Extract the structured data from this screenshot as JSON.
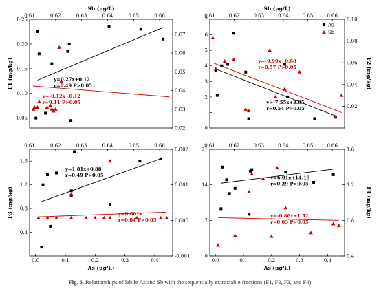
{
  "caption": {
    "label": "Fig. 6.",
    "text": "Relationships of labile As and Sb with the sequentially extractable fractions (F1, F2, F3, and F4)."
  },
  "colors": {
    "as_series": "#000000",
    "sb_series": "#cc0000",
    "as_text": "#000000",
    "sb_text": "#cc0000"
  },
  "chart_data": [
    {
      "id": "F1",
      "type": "scatter",
      "top_axis_label": "Sb (μg/L)",
      "xlim_as": [
        0,
        0.45
      ],
      "xlim_sb": [
        0.61,
        0.665
      ],
      "x_ticks_as": [],
      "x_ticks_sb": [
        "0.61",
        "0.62",
        "0.63",
        "0.64",
        "0.65",
        "0.66"
      ],
      "ylabel_left": "F1 (mg/kg)",
      "ylim_left": [
        0.03,
        0.25
      ],
      "y_ticks_left": [
        "0.05",
        "0.10",
        "0.15",
        "0.20",
        "0.25"
      ],
      "ylabel_right": "",
      "ylim_right": [
        0.02,
        0.078
      ],
      "y_ticks_right": [
        "0.02",
        "0.03",
        "0.04",
        "0.05",
        "0.06",
        "0.07"
      ],
      "legend": null,
      "as_points": [
        [
          0.02,
          0.05
        ],
        [
          0.025,
          0.225
        ],
        [
          0.03,
          0.18
        ],
        [
          0.05,
          0.06
        ],
        [
          0.07,
          0.16
        ],
        [
          0.12,
          0.185
        ],
        [
          0.125,
          0.2
        ],
        [
          0.13,
          0.045
        ],
        [
          0.25,
          0.235
        ],
        [
          0.35,
          0.23
        ],
        [
          0.42,
          0.21
        ]
      ],
      "sb_points": [
        [
          0.012,
          0.03
        ],
        [
          0.016,
          0.031
        ],
        [
          0.025,
          0.031
        ],
        [
          0.03,
          0.034
        ],
        [
          0.055,
          0.031
        ],
        [
          0.065,
          0.032
        ],
        [
          0.07,
          0.03
        ],
        [
          0.075,
          0.029
        ],
        [
          0.082,
          0.03
        ],
        [
          0.093,
          0.063
        ],
        [
          0.1,
          0.045
        ]
      ],
      "sb_points_note": "",
      "as_fit": {
        "slope": 0.27,
        "intercept": 0.12,
        "x0": 0.025,
        "x1": 0.42
      },
      "sb_fit": {
        "slope": -0.12,
        "intercept": 0.12,
        "x0": 0.01,
        "x1": 0.44
      },
      "as_annotation": [
        "y=0.27x+0.12",
        "r=0.49  P>0.05"
      ],
      "sb_annotation": [
        "y=-0.12x+0.12",
        "r=0.11  P>0.05"
      ]
    },
    {
      "id": "F2",
      "type": "scatter",
      "top_axis_label": "Sb (μg/L)",
      "xlim_as": [
        0,
        0.45
      ],
      "xlim_sb": [
        0.61,
        0.665
      ],
      "x_ticks_as": [],
      "x_ticks_sb": [
        "0.61",
        "0.62",
        "0.63",
        "0.64",
        "0.65",
        "0.66"
      ],
      "ylabel_left": "",
      "ylim_left": [
        0,
        7
      ],
      "y_ticks_left": [
        "0",
        "1",
        "2",
        "3",
        "4",
        "5",
        "6",
        "7"
      ],
      "ylabel_right": "F2 (mg/kg)",
      "ylim_right": [
        0,
        0.1
      ],
      "y_ticks_right": [
        "0.02",
        "0.04",
        "0.06",
        "0.08",
        "0.10"
      ],
      "legend": {
        "as": "As",
        "sb": "Sb"
      },
      "as_points": [
        [
          0.02,
          3.7
        ],
        [
          0.025,
          2.1
        ],
        [
          0.04,
          4.0
        ],
        [
          0.06,
          4.1
        ],
        [
          0.08,
          6.1
        ],
        [
          0.12,
          3.6
        ],
        [
          0.13,
          0.6
        ],
        [
          0.25,
          4.1
        ],
        [
          0.26,
          2.0
        ],
        [
          0.35,
          0.6
        ],
        [
          0.42,
          0.7
        ]
      ],
      "sb_points": [
        [
          0.01,
          5.8
        ],
        [
          0.02,
          3.8
        ],
        [
          0.05,
          4.3
        ],
        [
          0.08,
          4.4
        ],
        [
          0.12,
          1.2
        ],
        [
          0.13,
          1.1
        ],
        [
          0.2,
          5.0
        ],
        [
          0.22,
          2.0
        ],
        [
          0.25,
          2.5
        ],
        [
          0.3,
          3.6
        ],
        [
          0.42,
          0.7
        ],
        [
          0.44,
          2.1
        ]
      ],
      "as_fit": {
        "slope": -7.55,
        "intercept": 3.95,
        "x0": 0.02,
        "x1": 0.42
      },
      "sb_fit": {
        "slope": -9.99,
        "intercept": 0.68,
        "x0": 0.01,
        "x1": 0.44
      },
      "as_annotation": [
        "y=-7.55x+3.95",
        "r=0.54  P>0.05"
      ],
      "sb_annotation": [
        "y=-9.99x+0.68",
        "r=0.57  P>0.05"
      ]
    },
    {
      "id": "F3",
      "type": "scatter",
      "top_axis_label": "",
      "xlim_as": [
        -0.02,
        0.46
      ],
      "xlim_sb": [
        0.61,
        0.665
      ],
      "x_ticks_as": [
        "0.0",
        "0.1",
        "0.2",
        "0.3",
        "0.4"
      ],
      "x_ticks_sb": [
        "0.61",
        "0.62",
        "0.63",
        "0.64",
        "0.65",
        "0.66"
      ],
      "xlabel": "As (μg/L)",
      "ylabel_left": "F3 (mg/kg)",
      "ylim_left": [
        0,
        1.8
      ],
      "y_ticks_left": [
        "0.4",
        "0.8",
        "1.2",
        "1.6"
      ],
      "ylabel_right": "",
      "ylim_right": [
        -0.001,
        0.002
      ],
      "y_ticks_right": [
        "-0.001",
        "0.000",
        "0.001",
        "0.002"
      ],
      "legend": null,
      "as_points": [
        [
          0.02,
          0.15
        ],
        [
          0.025,
          1.2
        ],
        [
          0.04,
          1.37
        ],
        [
          0.05,
          0.5
        ],
        [
          0.07,
          1.4
        ],
        [
          0.12,
          1.1
        ],
        [
          0.12,
          1.02
        ],
        [
          0.13,
          1.76
        ],
        [
          0.25,
          0.87
        ],
        [
          0.35,
          1.6
        ],
        [
          0.42,
          1.64
        ]
      ],
      "sb_points": [
        [
          0.01,
          0.64
        ],
        [
          0.04,
          0.64
        ],
        [
          0.07,
          0.64
        ],
        [
          0.12,
          0.64
        ],
        [
          0.17,
          0.64
        ],
        [
          0.2,
          0.64
        ],
        [
          0.23,
          0.64
        ],
        [
          0.25,
          0.64
        ],
        [
          0.34,
          0.64
        ],
        [
          0.42,
          0.64
        ],
        [
          0.44,
          0.64
        ],
        [
          0.25,
          1.6
        ],
        [
          0.12,
          1.04
        ]
      ],
      "as_fit": {
        "slope": 1.81,
        "intercept": 0.88,
        "x0": 0.02,
        "x1": 0.42
      },
      "sb_fit": {
        "slope": 0.001,
        "intercept": 0.0,
        "x0": 0.01,
        "x1": 0.44
      },
      "as_annotation": [
        "y=1.81x+0.88",
        "r=0.49  P>0.05"
      ],
      "sb_annotation": [
        "y=0.001x",
        "r=0.04  P>0.05"
      ]
    },
    {
      "id": "F4",
      "type": "scatter",
      "top_axis_label": "",
      "xlim_as": [
        -0.02,
        0.46
      ],
      "xlim_sb": [
        0.61,
        0.665
      ],
      "x_ticks_as": [
        "0.0",
        "0.1",
        "0.2",
        "0.3",
        "0.4"
      ],
      "x_ticks_sb": [
        "0.61",
        "0.62",
        "0.63",
        "0.64",
        "0.65",
        "0.66"
      ],
      "xlabel": "As (μg/L)",
      "ylabel_left": "",
      "ylim_left": [
        0,
        21
      ],
      "y_ticks_left": [
        "0",
        "7",
        "14",
        "21"
      ],
      "ylabel_right": "F4 (mg/kg)",
      "ylim_right": [
        0.4,
        1.6
      ],
      "y_ticks_right": [
        "0.4",
        "0.8",
        "1.2",
        "1.6"
      ],
      "legend": null,
      "as_points": [
        [
          0.02,
          9.3
        ],
        [
          0.025,
          17.5
        ],
        [
          0.04,
          15.0
        ],
        [
          0.05,
          12.3
        ],
        [
          0.07,
          13.3
        ],
        [
          0.12,
          8.2
        ],
        [
          0.125,
          16.7
        ],
        [
          0.13,
          17.0
        ],
        [
          0.25,
          16.5
        ],
        [
          0.35,
          14.5
        ],
        [
          0.42,
          16.0
        ]
      ],
      "sb_points": [
        [
          0.01,
          0.52
        ],
        [
          0.07,
          0.63
        ],
        [
          0.12,
          1.12
        ],
        [
          0.17,
          1.27
        ],
        [
          0.2,
          0.62
        ],
        [
          0.22,
          1.39
        ],
        [
          0.25,
          0.94
        ],
        [
          0.34,
          0.66
        ],
        [
          0.42,
          0.76
        ],
        [
          0.44,
          0.74
        ],
        [
          0.13,
          1.32
        ]
      ],
      "as_fit": {
        "slope": 6.91,
        "intercept": 14.19,
        "x0": 0.02,
        "x1": 0.42
      },
      "sb_fit": {
        "slope": -0.86,
        "intercept": 1.52,
        "x0": 0.01,
        "x1": 0.44
      },
      "as_annotation": [
        "y=6.91x+14.19",
        "r=0.29  P>0.05"
      ],
      "sb_annotation": [
        "y=-0.86x+1.52",
        "r=0.03  P>0.05"
      ]
    }
  ]
}
